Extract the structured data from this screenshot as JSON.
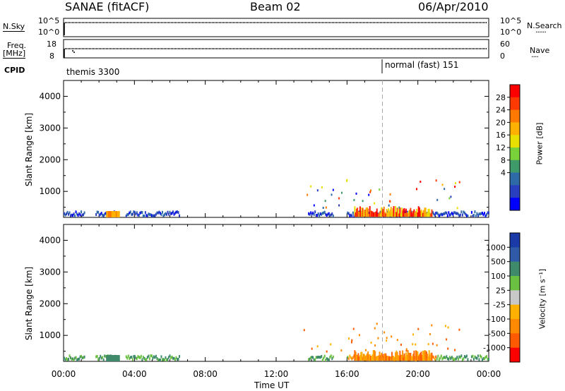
{
  "header": {
    "station": "SANAE (fitACF)",
    "beam": "Beam 02",
    "date": "06/Apr/2010"
  },
  "sky_panel": {
    "left_label": "N.Sky",
    "left_ticks": [
      "10^5",
      "10^0"
    ],
    "right_ticks": [
      "10^5",
      "10^0"
    ],
    "right_label": "N.Search",
    "right_label_style": "dotted"
  },
  "freq_panel": {
    "left_label_line1": "Freq.",
    "left_label_line2": "[MHz]",
    "left_ticks": [
      "18",
      "8"
    ],
    "right_ticks": [
      "60",
      "0"
    ],
    "right_label": "Nave",
    "right_label_style": "dotted"
  },
  "cpid": {
    "label": "CPID",
    "modes": [
      {
        "name": "themis 3300",
        "start_hour": 0
      },
      {
        "name": "normal (fast) 151",
        "start_hour": 18
      }
    ]
  },
  "chart_data": [
    {
      "type": "heatmap",
      "name": "power",
      "ylabel": "Slant Range [km]",
      "ylim": [
        180,
        4500
      ],
      "yticks": [
        1000,
        2000,
        3000,
        4000
      ],
      "xlim": [
        0,
        24
      ],
      "xtick_labels": [
        "00:00",
        "04:00",
        "08:00",
        "12:00",
        "16:00",
        "20:00",
        "00:00"
      ],
      "marker_hour": 18,
      "colorbar": {
        "label": "Power [dB]",
        "ticks": [
          "28",
          "24",
          "20",
          "16",
          "12",
          "8",
          "4"
        ],
        "colors_top_to_bottom": [
          "#ff0000",
          "#ff3a00",
          "#ff7800",
          "#ffb000",
          "#e8e000",
          "#7ad23a",
          "#3f9a6a",
          "#2f6aa8",
          "#2a3fc0",
          "#0000ff"
        ]
      }
    },
    {
      "type": "heatmap",
      "name": "velocity",
      "ylabel": "Slant Range [km]",
      "ylim": [
        180,
        4500
      ],
      "yticks": [
        1000,
        2000,
        3000,
        4000
      ],
      "xlim": [
        0,
        24
      ],
      "xtick_labels": [
        "00:00",
        "04:00",
        "08:00",
        "12:00",
        "16:00",
        "20:00",
        "00:00"
      ],
      "xlabel": "Time UT",
      "marker_hour": 18,
      "colorbar": {
        "label": "Velocity [m s⁻¹]",
        "ticks": [
          "1000",
          "500",
          "100",
          "25",
          "-25",
          "-100",
          "-500",
          "-1000"
        ],
        "colors_top_to_bottom": [
          "#1a3aa8",
          "#2f5aa8",
          "#3f8a6a",
          "#6ac040",
          "#c8c8c8",
          "#ffb000",
          "#ff8a00",
          "#ff5a00",
          "#ff0000"
        ]
      }
    }
  ]
}
